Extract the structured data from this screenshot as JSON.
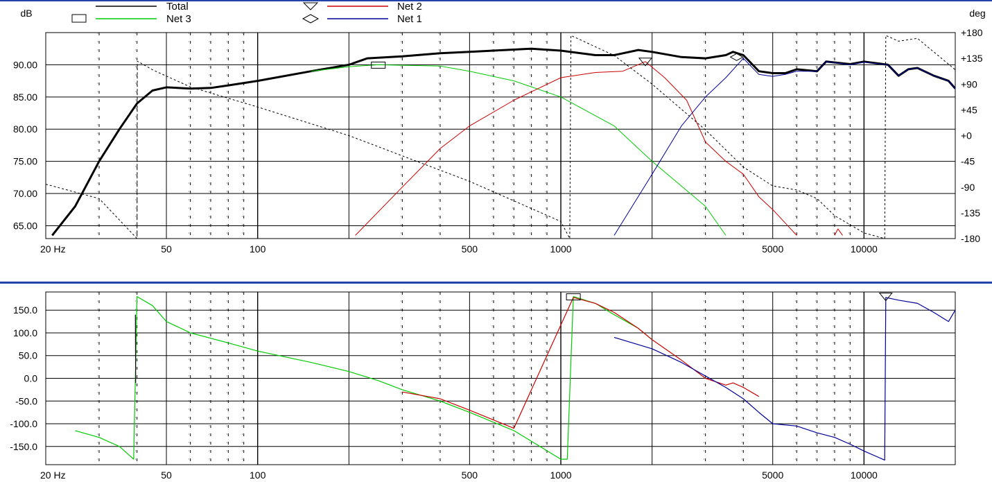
{
  "chart_data": [
    {
      "type": "line",
      "title": "",
      "xscale": "log",
      "xlim": [
        20,
        20000
      ],
      "ylim": [
        63,
        95
      ],
      "y2lim": [
        -180,
        180
      ],
      "ylabel": "dB",
      "y2label": "deg",
      "grid": true,
      "legend_placement": "top",
      "x_ticks": [
        {
          "v": 20,
          "label": "20 Hz"
        },
        {
          "v": 50,
          "label": "50"
        },
        {
          "v": 100,
          "label": "100"
        },
        {
          "v": 500,
          "label": "500"
        },
        {
          "v": 1000,
          "label": "1000"
        },
        {
          "v": 5000,
          "label": "5000"
        },
        {
          "v": 10000,
          "label": "10000"
        }
      ],
      "y_ticks": [
        {
          "v": 90,
          "label": "90.00"
        },
        {
          "v": 85,
          "label": "85.00"
        },
        {
          "v": 80,
          "label": "80.00"
        },
        {
          "v": 75,
          "label": "75.00"
        },
        {
          "v": 70,
          "label": "70.00"
        },
        {
          "v": 65,
          "label": "65.00"
        }
      ],
      "y2_ticks": [
        {
          "v": 180,
          "label": "+180"
        },
        {
          "v": 135,
          "label": "+135"
        },
        {
          "v": 90,
          "label": "+90"
        },
        {
          "v": 45,
          "label": "+45"
        },
        {
          "v": 0,
          "label": "+0"
        },
        {
          "v": -45,
          "label": "-45"
        },
        {
          "v": -90,
          "label": "-90"
        },
        {
          "v": -135,
          "label": "-135"
        },
        {
          "v": -180,
          "label": "-180"
        }
      ],
      "legend": [
        {
          "name": "Total",
          "color": "#000000",
          "marker": "none"
        },
        {
          "name": "Net 3",
          "color": "#00cc00",
          "marker": "square"
        },
        {
          "name": "Net 2",
          "color": "#cc0000",
          "marker": "triangle"
        },
        {
          "name": "Net 1",
          "color": "#000099",
          "marker": "diamond"
        }
      ],
      "series": [
        {
          "name": "Total",
          "color": "#000000",
          "width": 3,
          "points": [
            [
              21,
              63.5
            ],
            [
              25,
              68
            ],
            [
              30,
              75
            ],
            [
              35,
              80
            ],
            [
              40,
              84
            ],
            [
              45,
              86
            ],
            [
              50,
              86.5
            ],
            [
              60,
              86.3
            ],
            [
              70,
              86.4
            ],
            [
              80,
              86.8
            ],
            [
              100,
              87.5
            ],
            [
              150,
              89
            ],
            [
              200,
              90
            ],
            [
              230,
              91
            ],
            [
              300,
              91.3
            ],
            [
              400,
              91.8
            ],
            [
              500,
              92
            ],
            [
              800,
              92.5
            ],
            [
              1000,
              92.2
            ],
            [
              1300,
              91.5
            ],
            [
              1500,
              91.5
            ],
            [
              1800,
              92.3
            ],
            [
              2000,
              92
            ],
            [
              2500,
              91.2
            ],
            [
              3000,
              91
            ],
            [
              3500,
              91.5
            ],
            [
              3700,
              92
            ],
            [
              4000,
              91.5
            ],
            [
              4500,
              89
            ],
            [
              5000,
              88.7
            ],
            [
              5500,
              88.7
            ],
            [
              6000,
              89.3
            ],
            [
              7000,
              89
            ],
            [
              7500,
              90.5
            ],
            [
              9000,
              90.1
            ],
            [
              10000,
              90.5
            ],
            [
              12000,
              90
            ],
            [
              13000,
              88.3
            ],
            [
              14000,
              89.3
            ],
            [
              15000,
              89.5
            ],
            [
              17000,
              88.3
            ],
            [
              19000,
              87.5
            ],
            [
              20000,
              86.3
            ]
          ]
        },
        {
          "name": "Net 3",
          "color": "#00cc00",
          "width": 1,
          "points": [
            [
              150,
              89
            ],
            [
              200,
              89.7
            ],
            [
              250,
              90
            ],
            [
              400,
              89.8
            ],
            [
              500,
              89
            ],
            [
              700,
              87.5
            ],
            [
              1000,
              85
            ],
            [
              1500,
              80.5
            ],
            [
              2000,
              75
            ],
            [
              3000,
              68
            ],
            [
              3500,
              63.5
            ]
          ]
        },
        {
          "name": "Net 2",
          "color": "#cc0000",
          "width": 1,
          "points": [
            [
              210,
              63.5
            ],
            [
              300,
              71
            ],
            [
              400,
              77
            ],
            [
              500,
              80.5
            ],
            [
              700,
              84.5
            ],
            [
              1000,
              88
            ],
            [
              1300,
              88.8
            ],
            [
              1600,
              89
            ],
            [
              1900,
              90.5
            ],
            [
              2200,
              88
            ],
            [
              2600,
              84.5
            ],
            [
              3000,
              78
            ],
            [
              3500,
              75
            ],
            [
              4000,
              73
            ],
            [
              4500,
              69.5
            ],
            [
              5000,
              67.5
            ],
            [
              6000,
              63.5
            ]
          ]
        },
        {
          "name": "Net 2 (HF)",
          "color": "#cc0000",
          "width": 1,
          "points": [
            [
              8000,
              63.5
            ],
            [
              8200,
              64.5
            ],
            [
              8500,
              63.5
            ]
          ]
        },
        {
          "name": "Net 1",
          "color": "#000099",
          "width": 1,
          "points": [
            [
              1500,
              63.5
            ],
            [
              2000,
              73
            ],
            [
              2500,
              80.5
            ],
            [
              3000,
              85
            ],
            [
              3500,
              88
            ],
            [
              4000,
              91
            ],
            [
              4500,
              88.5
            ],
            [
              5000,
              88.2
            ],
            [
              5500,
              88.5
            ],
            [
              6000,
              89
            ],
            [
              7000,
              89
            ],
            [
              7500,
              90.5
            ],
            [
              9000,
              90
            ],
            [
              10000,
              90.4
            ],
            [
              12000,
              90
            ],
            [
              13000,
              88.3
            ],
            [
              14000,
              89.3
            ],
            [
              15000,
              89.5
            ],
            [
              17000,
              88.3
            ],
            [
              19000,
              87.5
            ],
            [
              20000,
              86.3
            ]
          ]
        },
        {
          "name": "Phase",
          "color": "#000000",
          "width": 1,
          "dash": "3,3",
          "axis": "y2",
          "points": [
            [
              20,
              -85
            ],
            [
              30,
              -110
            ],
            [
              40,
              -180
            ],
            [
              40.1,
              130
            ],
            [
              45,
              115
            ],
            [
              60,
              85
            ],
            [
              100,
              50
            ],
            [
              200,
              0
            ],
            [
              500,
              -80
            ],
            [
              1000,
              -150
            ],
            [
              1070,
              -180
            ],
            [
              1080,
              175
            ],
            [
              1500,
              140
            ],
            [
              2000,
              90
            ],
            [
              3000,
              10
            ],
            [
              4000,
              -55
            ],
            [
              5000,
              -88
            ],
            [
              6000,
              -95
            ],
            [
              7000,
              -110
            ],
            [
              8000,
              -140
            ],
            [
              10000,
              -170
            ],
            [
              11700,
              -180
            ],
            [
              11800,
              175
            ],
            [
              13000,
              165
            ],
            [
              15000,
              170
            ],
            [
              20000,
              115
            ]
          ]
        }
      ],
      "markers": [
        {
          "series": "Net 3",
          "shape": "square",
          "x": 250,
          "y": 90
        },
        {
          "series": "Net 2",
          "shape": "triangle",
          "x": 1900,
          "y": 90.5
        },
        {
          "series": "Net 1",
          "shape": "diamond",
          "x": 3800,
          "y": 91.2
        }
      ]
    },
    {
      "type": "line",
      "title": "",
      "xscale": "log",
      "xlim": [
        20,
        20000
      ],
      "ylim": [
        -190,
        190
      ],
      "grid": true,
      "x_ticks": [
        {
          "v": 20,
          "label": "20 Hz"
        },
        {
          "v": 50,
          "label": "50"
        },
        {
          "v": 100,
          "label": "100"
        },
        {
          "v": 500,
          "label": "500"
        },
        {
          "v": 1000,
          "label": "1000"
        },
        {
          "v": 5000,
          "label": "5000"
        },
        {
          "v": 10000,
          "label": "10000"
        }
      ],
      "y_ticks": [
        {
          "v": 150,
          "label": "150.0"
        },
        {
          "v": 100,
          "label": "100.0"
        },
        {
          "v": 50,
          "label": "50.0"
        },
        {
          "v": 0,
          "label": "0.0"
        },
        {
          "v": -50,
          "label": "-50.0"
        },
        {
          "v": -100,
          "label": "-100.0"
        },
        {
          "v": -150,
          "label": "-150.0"
        }
      ],
      "series": [
        {
          "name": "Net 3",
          "color": "#00cc00",
          "width": 1.2,
          "points": [
            [
              25,
              -115
            ],
            [
              30,
              -130
            ],
            [
              35,
              -150
            ],
            [
              39,
              -178
            ],
            [
              40,
              180
            ],
            [
              45,
              160
            ],
            [
              50,
              125
            ],
            [
              60,
              100
            ],
            [
              80,
              78
            ],
            [
              100,
              60
            ],
            [
              150,
              35
            ],
            [
              200,
              15
            ],
            [
              250,
              -5
            ],
            [
              300,
              -25
            ],
            [
              400,
              -50
            ],
            [
              500,
              -75
            ],
            [
              700,
              -115
            ],
            [
              1000,
              -178
            ],
            [
              1050,
              -178
            ],
            [
              1100,
              180
            ],
            [
              1300,
              165
            ],
            [
              1500,
              140
            ],
            [
              1800,
              110
            ],
            [
              2000,
              85
            ]
          ]
        },
        {
          "name": "Net 2",
          "color": "#cc0000",
          "width": 1.2,
          "points": [
            [
              300,
              -30
            ],
            [
              400,
              -45
            ],
            [
              500,
              -70
            ],
            [
              700,
              -110
            ],
            [
              1100,
              178
            ],
            [
              1300,
              165
            ],
            [
              1500,
              145
            ],
            [
              1800,
              110
            ],
            [
              2000,
              85
            ],
            [
              2500,
              40
            ],
            [
              3000,
              0
            ],
            [
              3500,
              -15
            ],
            [
              3700,
              -10
            ],
            [
              4000,
              -20
            ],
            [
              4500,
              -40
            ]
          ]
        },
        {
          "name": "Net 1",
          "color": "#000099",
          "width": 1.2,
          "points": [
            [
              1500,
              90
            ],
            [
              2000,
              65
            ],
            [
              2500,
              35
            ],
            [
              3000,
              5
            ],
            [
              3500,
              -20
            ],
            [
              4000,
              -45
            ],
            [
              4500,
              -75
            ],
            [
              5000,
              -100
            ],
            [
              6000,
              -105
            ],
            [
              7000,
              -120
            ],
            [
              8000,
              -130
            ],
            [
              9000,
              -145
            ],
            [
              10000,
              -160
            ],
            [
              11700,
              -180
            ],
            [
              11800,
              178
            ],
            [
              13000,
              172
            ],
            [
              15000,
              165
            ],
            [
              17000,
              145
            ],
            [
              19000,
              125
            ],
            [
              20000,
              150
            ]
          ]
        },
        {
          "name": "Total",
          "color": "#000000",
          "width": 1.2,
          "points": [
            [
              39.5,
              140
            ],
            [
              39.6,
              -10
            ]
          ]
        }
      ],
      "markers": [
        {
          "series": "Net 3",
          "shape": "square",
          "x": 1100,
          "y": 180
        },
        {
          "series": "Net 1",
          "shape": "triangle",
          "x": 11800,
          "y": 180
        }
      ]
    }
  ]
}
